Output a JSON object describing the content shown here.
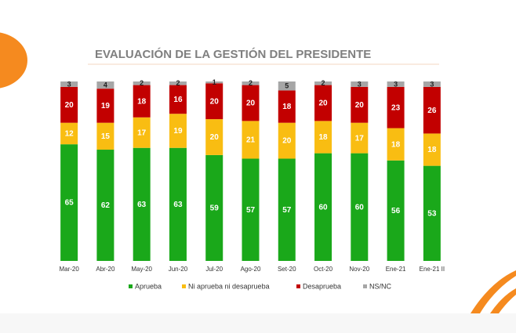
{
  "chart_data": {
    "type": "stacked_bar",
    "title": "EVALUACIÓN DE LA GESTIÓN DEL PRESIDENTE",
    "categories": [
      "Mar-20",
      "Abr-20",
      "May-20",
      "Jun-20",
      "Jul-20",
      "Ago-20",
      "Set-20",
      "Oct-20",
      "Nov-20",
      "Ene-21",
      "Ene-21 II"
    ],
    "series": [
      {
        "name": "Aprueba",
        "color": "#1aa81a",
        "values": [
          65,
          62,
          63,
          63,
          59,
          57,
          57,
          60,
          60,
          56,
          53
        ]
      },
      {
        "name": "Ni aprueba ni desaprueba",
        "color": "#f9bd12",
        "values": [
          12,
          15,
          17,
          19,
          20,
          21,
          20,
          18,
          17,
          18,
          18
        ]
      },
      {
        "name": "Desaprueba",
        "color": "#c20000",
        "values": [
          20,
          19,
          18,
          16,
          20,
          20,
          18,
          20,
          20,
          23,
          26
        ]
      },
      {
        "name": "NS/NC",
        "color": "#a6a6a6",
        "values": [
          3,
          4,
          2,
          2,
          1,
          2,
          5,
          2,
          3,
          3,
          3
        ]
      }
    ],
    "legend": "bottom"
  }
}
